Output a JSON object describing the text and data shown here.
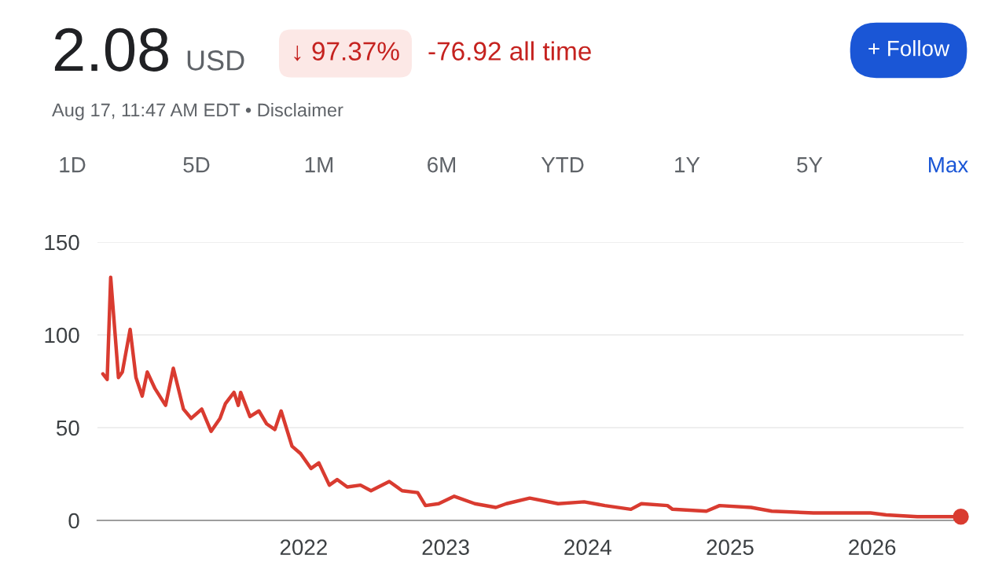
{
  "chart_data": {
    "type": "line",
    "title": "2.08",
    "subtitle": "USD",
    "annotations": [
      "↓ 97.37%",
      "-76.92 all time",
      "+ Follow",
      "Aug 17, 11:47 AM EDT • Disclaimer",
      "1D",
      "5D",
      "1M",
      "6M",
      "YTD",
      "1Y",
      "5Y",
      "Max"
    ],
    "x": [
      "2020-08-03",
      "2020-08-14",
      "2020-08-23",
      "2020-09-12",
      "2020-09-22",
      "2020-10-12",
      "2020-10-27",
      "2020-11-12",
      "2020-11-25",
      "2020-12-15",
      "2021-01-11",
      "2021-01-31",
      "2021-02-26",
      "2021-03-18",
      "2021-04-14",
      "2021-05-08",
      "2021-05-31",
      "2021-06-14",
      "2021-07-06",
      "2021-07-17",
      "2021-07-23",
      "2021-08-16",
      "2021-09-08",
      "2021-09-28",
      "2021-10-19",
      "2021-11-04",
      "2021-12-02",
      "2021-12-24",
      "2022-01-20",
      "2022-02-09",
      "2022-03-08",
      "2022-03-28",
      "2022-04-23",
      "2022-05-27",
      "2022-06-23",
      "2022-08-09",
      "2022-09-11",
      "2022-10-21",
      "2022-11-10",
      "2022-12-14",
      "2023-01-23",
      "2023-03-17",
      "2023-05-10",
      "2023-06-06",
      "2023-08-05",
      "2023-10-17",
      "2023-12-23",
      "2024-02-14",
      "2024-04-21",
      "2024-05-18",
      "2024-07-24",
      "2024-08-06",
      "2024-11-01",
      "2024-12-05",
      "2025-02-24",
      "2025-04-18",
      "2025-08-03",
      "2025-12-28",
      "2026-02-06",
      "2026-04-27",
      "2026-08-17"
    ],
    "series": [
      {
        "color": "#d93b30",
        "values": [
          79,
          76,
          131,
          77,
          80,
          103,
          77,
          67,
          80,
          71,
          62,
          82,
          60,
          55,
          60,
          48,
          55,
          63,
          69,
          62,
          69,
          56,
          59,
          52,
          49,
          59,
          40,
          36,
          28,
          31,
          19,
          22,
          18,
          19,
          16,
          21,
          16,
          15,
          8,
          9,
          13,
          9,
          7,
          9,
          12,
          9,
          10,
          8,
          6,
          9,
          8,
          6,
          5,
          8,
          7,
          5,
          4,
          4,
          3,
          2,
          2
        ]
      },
      {
        "type": "scatter",
        "color": "#d93b30",
        "x": [
          "2026-08-17"
        ],
        "values": [
          2
        ],
        "marker": "circle"
      }
    ],
    "xlim": [
      "2020-07-20",
      "2026-08-24"
    ],
    "ylim": [
      0,
      150
    ],
    "xticks": [
      {
        "value": "2022-01-01",
        "label": "2022"
      },
      {
        "value": "2023-01-01",
        "label": "2023"
      },
      {
        "value": "2024-01-01",
        "label": "2024"
      },
      {
        "value": "2025-01-01",
        "label": "2025"
      },
      {
        "value": "2026-01-01",
        "label": "2026"
      }
    ],
    "yticks": [
      0,
      50,
      100,
      150
    ],
    "grid": "y",
    "legend": false,
    "marker": "none",
    "line_style": "solid"
  }
}
